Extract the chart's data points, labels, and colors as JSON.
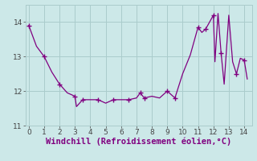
{
  "x": [
    0,
    0.5,
    1,
    1.5,
    2,
    2.5,
    3,
    3.1,
    3.5,
    4,
    4.5,
    5,
    5.5,
    6,
    6.5,
    7,
    7.25,
    7.5,
    8,
    8.5,
    9,
    9.5,
    10,
    10.5,
    11,
    11.25,
    11.5,
    12,
    12.1,
    12.3,
    12.5,
    12.7,
    13,
    13.25,
    13.5,
    13.75,
    14,
    14.2
  ],
  "y": [
    13.9,
    13.3,
    13.0,
    12.55,
    12.2,
    11.95,
    11.85,
    11.55,
    11.75,
    11.75,
    11.75,
    11.65,
    11.75,
    11.75,
    11.75,
    11.8,
    11.95,
    11.8,
    11.85,
    11.8,
    12.0,
    11.8,
    12.5,
    13.05,
    13.85,
    13.7,
    13.8,
    14.2,
    12.85,
    14.25,
    13.1,
    12.2,
    14.2,
    12.85,
    12.5,
    12.95,
    12.9,
    12.35
  ],
  "marker_x": [
    0,
    1,
    2,
    3,
    3.5,
    4.5,
    5.5,
    6.5,
    7.25,
    7.5,
    9,
    9.5,
    11,
    11.5,
    12,
    12.5,
    13.5,
    14
  ],
  "marker_y": [
    13.9,
    13.0,
    12.2,
    11.85,
    11.75,
    11.75,
    11.75,
    11.75,
    11.95,
    11.8,
    12.0,
    11.8,
    13.85,
    13.8,
    14.2,
    13.1,
    12.5,
    12.9
  ],
  "line_color": "#800080",
  "marker_color": "#800080",
  "bg_color": "#cce8e8",
  "grid_color": "#aacccc",
  "xlabel": "Windchill (Refroidissement éolien,°C)",
  "xlabel_color": "#800080",
  "xlim": [
    -0.2,
    14.5
  ],
  "ylim": [
    11.0,
    14.5
  ],
  "yticks": [
    11,
    12,
    13,
    14
  ],
  "xticks": [
    0,
    1,
    2,
    3,
    4,
    5,
    6,
    7,
    8,
    9,
    10,
    11,
    12,
    13,
    14
  ],
  "tick_color": "#444444",
  "tick_fontsize": 6.5,
  "xlabel_fontsize": 7.5
}
